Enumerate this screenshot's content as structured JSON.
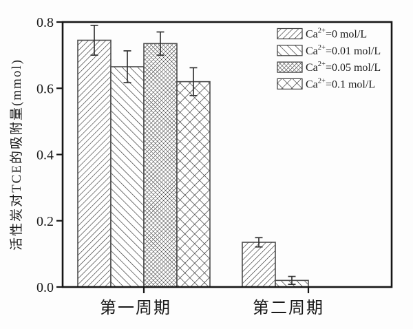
{
  "figure": {
    "bg": "#fdfdfd",
    "frame_color": "#161616",
    "bar_edge_color": "#4d4d4d",
    "hatch_color": "#2a2a2a",
    "error_bar_color": "#333333",
    "text_color": "#1a1a1a"
  },
  "chart_data": {
    "type": "bar",
    "title": "",
    "xlabel": "",
    "ylabel": "活性炭对TCE的吸附量(mmol)",
    "categories": [
      "第一周期",
      "第二周期"
    ],
    "ylim": [
      0,
      0.8
    ],
    "yticks": [
      0,
      0.2,
      0.4,
      0.6,
      0.8
    ],
    "ytick_labels": [
      "0.0",
      "0.2",
      "0.4",
      "0.6",
      "0.8"
    ],
    "grid": false,
    "legend_position": "top-right-inside",
    "error_bars": true,
    "series": [
      {
        "name": "Ca2+=0 mol/L",
        "label": {
          "prefix": "Ca",
          "sup": "2+",
          "suffix": "=0 mol/L"
        },
        "pattern": "hatch-forward",
        "values": [
          0.745,
          0.135
        ],
        "errors": [
          0.045,
          0.014
        ]
      },
      {
        "name": "Ca2+=0.01 mol/L",
        "label": {
          "prefix": "Ca",
          "sup": "2+",
          "suffix": "=0.01 mol/L"
        },
        "pattern": "hatch-backward",
        "values": [
          0.665,
          0.02
        ],
        "errors": [
          0.048,
          0.012
        ]
      },
      {
        "name": "Ca2+=0.05 mol/L",
        "label": {
          "prefix": "Ca",
          "sup": "2+",
          "suffix": "=0.05 mol/L"
        },
        "pattern": "crosshatch-dense",
        "values": [
          0.735,
          0
        ],
        "errors": [
          0.035,
          0
        ]
      },
      {
        "name": "Ca2+=0.1 mol/L",
        "label": {
          "prefix": "Ca",
          "sup": "2+",
          "suffix": "=0.1 mol/L"
        },
        "pattern": "crosshatch-diamond",
        "values": [
          0.62,
          0
        ],
        "errors": [
          0.042,
          0
        ]
      }
    ]
  }
}
